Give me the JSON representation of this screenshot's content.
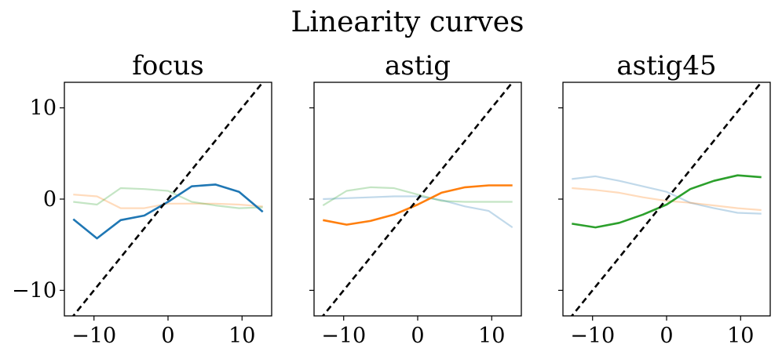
{
  "figure_title": "Linearity curves",
  "colors": {
    "focus": "#1f77b4",
    "astig": "#ff7f0e",
    "astig45": "#2ca02c",
    "faded_alpha": 0.28,
    "reference_line": "#000000"
  },
  "chart_data": [
    {
      "type": "line",
      "title": "focus",
      "xlim": [
        -14,
        14
      ],
      "ylim": [
        -12.8,
        12.8
      ],
      "xticks": [
        -10,
        0,
        10
      ],
      "xtick_labels": [
        "−10",
        "0",
        "10"
      ],
      "yticks": [
        10,
        0,
        -10
      ],
      "ytick_labels": [
        "10",
        "0",
        "−10"
      ],
      "show_ytick_labels": true,
      "x": [
        -12.8,
        -9.6,
        -6.4,
        -3.2,
        0,
        3.2,
        6.4,
        9.6,
        12.8
      ],
      "reference_line": {
        "style": "dashed",
        "x": [
          -14,
          14
        ],
        "y": [
          -14,
          14
        ]
      },
      "series": [
        {
          "name": "focus",
          "highlight": true,
          "values": [
            -2.2,
            -4.3,
            -2.3,
            -1.8,
            -0.3,
            1.4,
            1.6,
            0.8,
            -1.4
          ]
        },
        {
          "name": "astig",
          "highlight": false,
          "values": [
            0.5,
            0.3,
            -1.0,
            -1.0,
            -0.5,
            -0.5,
            -0.5,
            -0.6,
            -0.8
          ]
        },
        {
          "name": "astig45",
          "highlight": false,
          "values": [
            -0.3,
            -0.6,
            1.2,
            1.1,
            0.9,
            -0.3,
            -0.7,
            -1.0,
            -0.9
          ]
        }
      ]
    },
    {
      "type": "line",
      "title": "astig",
      "xlim": [
        -14,
        14
      ],
      "ylim": [
        -12.8,
        12.8
      ],
      "xticks": [
        -10,
        0,
        10
      ],
      "xtick_labels": [
        "−10",
        "0",
        "10"
      ],
      "yticks": [
        10,
        0,
        -10
      ],
      "show_ytick_labels": false,
      "x": [
        -12.8,
        -9.6,
        -6.4,
        -3.2,
        0,
        3.2,
        6.4,
        9.6,
        12.8
      ],
      "reference_line": {
        "style": "dashed",
        "x": [
          -14,
          14
        ],
        "y": [
          -14,
          14
        ]
      },
      "series": [
        {
          "name": "focus",
          "highlight": false,
          "values": [
            0.0,
            0.1,
            0.2,
            0.3,
            0.3,
            -0.1,
            -0.8,
            -1.3,
            -3.1
          ]
        },
        {
          "name": "astig",
          "highlight": true,
          "values": [
            -2.3,
            -2.8,
            -2.4,
            -1.7,
            -0.6,
            0.7,
            1.3,
            1.5,
            1.5
          ]
        },
        {
          "name": "astig45",
          "highlight": false,
          "values": [
            -0.7,
            0.9,
            1.3,
            1.2,
            0.5,
            -0.2,
            -0.3,
            -0.3,
            -0.3
          ]
        }
      ]
    },
    {
      "type": "line",
      "title": "astig45",
      "xlim": [
        -14,
        14
      ],
      "ylim": [
        -12.8,
        12.8
      ],
      "xticks": [
        -10,
        0,
        10
      ],
      "xtick_labels": [
        "−10",
        "0",
        "10"
      ],
      "yticks": [
        10,
        0,
        -10
      ],
      "show_ytick_labels": false,
      "x": [
        -12.8,
        -9.6,
        -6.4,
        -3.2,
        0,
        3.2,
        6.4,
        9.6,
        12.8
      ],
      "reference_line": {
        "style": "dashed",
        "x": [
          -14,
          14
        ],
        "y": [
          -14,
          14
        ]
      },
      "series": [
        {
          "name": "focus",
          "highlight": false,
          "values": [
            2.2,
            2.5,
            2.0,
            1.4,
            0.8,
            -0.4,
            -1.0,
            -1.5,
            -1.6
          ]
        },
        {
          "name": "astig",
          "highlight": false,
          "values": [
            1.2,
            1.0,
            0.7,
            0.2,
            -0.2,
            -0.4,
            -0.7,
            -1.0,
            -1.2
          ]
        },
        {
          "name": "astig45",
          "highlight": true,
          "values": [
            -2.7,
            -3.1,
            -2.6,
            -1.7,
            -0.6,
            1.1,
            2.0,
            2.6,
            2.4
          ]
        }
      ]
    }
  ]
}
